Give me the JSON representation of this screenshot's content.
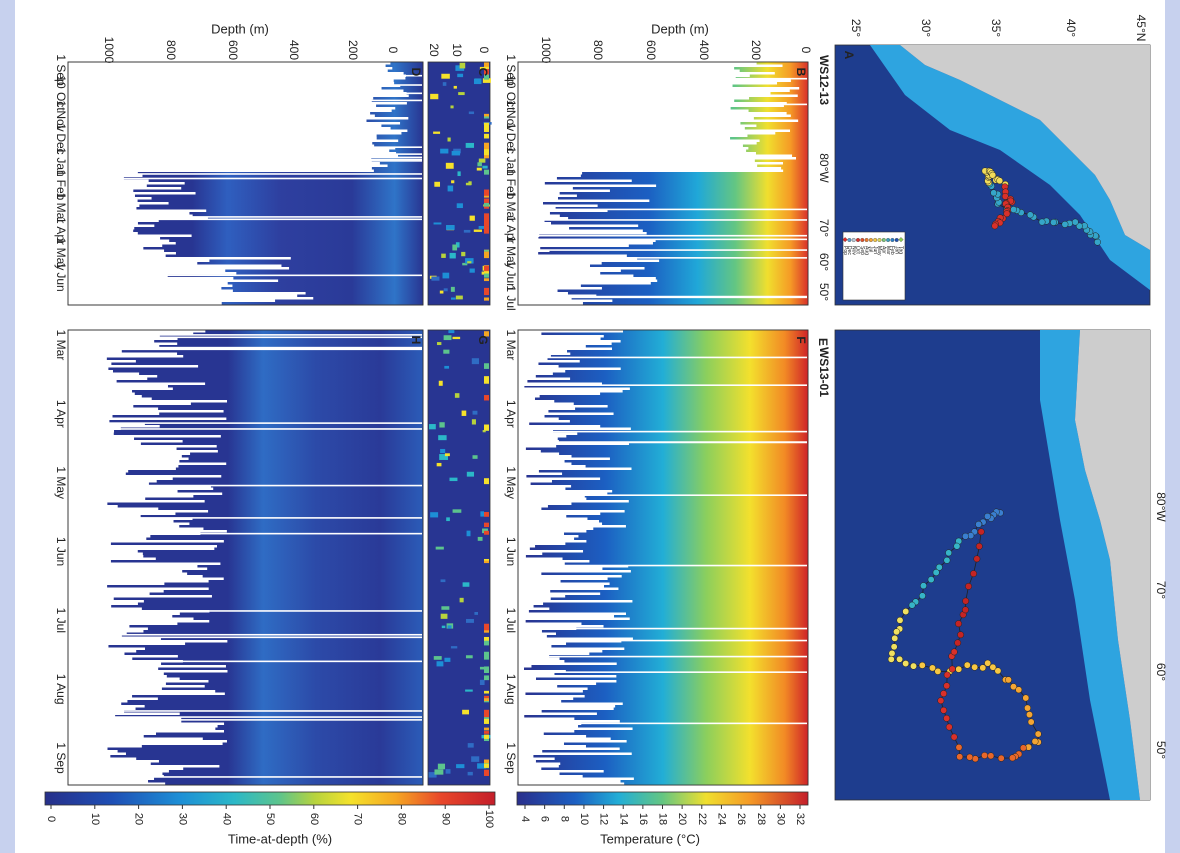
{
  "panels": [
    {
      "label": "A",
      "title": "WS12-13",
      "lat_ticks": [
        "45°N",
        "40°",
        "35°",
        "30°",
        "25°"
      ],
      "lon_ticks": [
        "80°W",
        "70°",
        "60°",
        "50°"
      ],
      "legend": [
        "Tag",
        "Jan",
        "Feb",
        "Mar",
        "Apr",
        "May",
        "Jun",
        "Jul",
        "Aug",
        "Sep",
        "Oct",
        "Nov",
        "Dec",
        "Pop"
      ]
    },
    {
      "label": "B",
      "dates": [
        "1 Sep",
        "10 Oct",
        "1 Nov",
        "1 Dec",
        "1 Jan",
        "1 Feb",
        "1 Mar",
        "1 Apr",
        "1 May",
        "1 Jun",
        "1 Jul"
      ]
    },
    {
      "label": "C",
      "ticks": [
        0,
        10,
        20
      ]
    },
    {
      "label": "D",
      "dates": [
        "1 Sep",
        "10 Oct",
        "1 Nov",
        "1 Dec",
        "1 Jan",
        "1 Feb",
        "1 Mar",
        "1 Apr",
        "1 May",
        "1 Jun"
      ]
    },
    {
      "label": "E",
      "title": "WS13-01",
      "lon_ticks": [
        "80°W",
        "70°",
        "60°",
        "50°"
      ]
    },
    {
      "label": "F",
      "dates": [
        "1 Mar",
        "1 Apr",
        "1 May",
        "1 Jun",
        "1 Jul",
        "1 Aug",
        "1 Sep"
      ]
    },
    {
      "label": "G"
    },
    {
      "label": "H",
      "dates": [
        "1 Mar",
        "1 Apr",
        "1 May",
        "1 Jun",
        "1 Jul",
        "1 Aug",
        "1 Sep"
      ]
    }
  ],
  "depth_axes": [
    {
      "title": "Depth (m)",
      "ticks": [
        1000,
        800,
        600,
        400,
        200,
        0
      ]
    },
    {
      "title": "Depth (m)",
      "ticks": [
        1000,
        800,
        600,
        400,
        200,
        0
      ]
    }
  ],
  "colorbars": [
    {
      "title": "Temperature (°C)",
      "ticks": [
        4,
        6,
        8,
        10,
        12,
        14,
        16,
        18,
        20,
        22,
        24,
        26,
        28,
        30,
        32
      ]
    },
    {
      "title": "Time-at-depth (%)",
      "ticks": [
        0,
        10,
        20,
        30,
        40,
        50,
        60,
        70,
        80,
        90,
        100
      ]
    }
  ]
}
